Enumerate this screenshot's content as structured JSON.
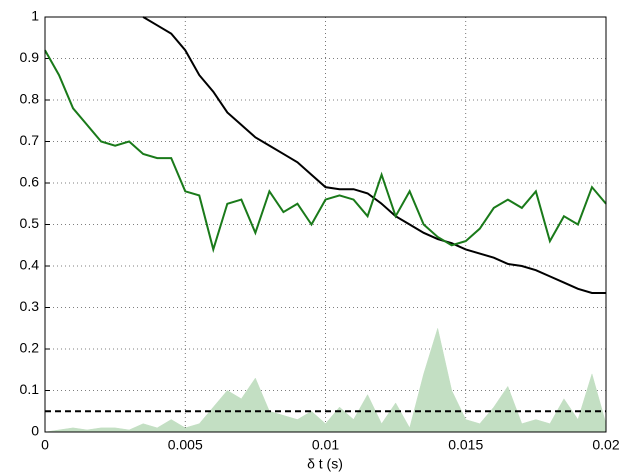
{
  "chart_data": {
    "type": "line",
    "x_label": "δ t (s)",
    "x": [
      0,
      0.0005,
      0.001,
      0.0015,
      0.002,
      0.0025,
      0.003,
      0.0035,
      0.004,
      0.0045,
      0.005,
      0.0055,
      0.006,
      0.0065,
      0.007,
      0.0075,
      0.008,
      0.0085,
      0.009,
      0.0095,
      0.01,
      0.0105,
      0.011,
      0.0115,
      0.012,
      0.0125,
      0.013,
      0.0135,
      0.014,
      0.0145,
      0.015,
      0.0155,
      0.016,
      0.0165,
      0.017,
      0.0175,
      0.018,
      0.0185,
      0.019,
      0.0195,
      0.02
    ],
    "series": [
      {
        "kind": "area",
        "color": "#c3dfc3",
        "values": [
          0,
          0.005,
          0.01,
          0.005,
          0.01,
          0.01,
          0.005,
          0.02,
          0.01,
          0.03,
          0.01,
          0.02,
          0.06,
          0.1,
          0.08,
          0.13,
          0.05,
          0.04,
          0.03,
          0.05,
          0.02,
          0.06,
          0.03,
          0.09,
          0.02,
          0.07,
          0.01,
          0.14,
          0.25,
          0.1,
          0.03,
          0.02,
          0.06,
          0.11,
          0.02,
          0.03,
          0.02,
          0.08,
          0.03,
          0.14,
          0.02
        ]
      },
      {
        "kind": "line",
        "color": "#000000",
        "values": [
          null,
          null,
          null,
          null,
          null,
          null,
          null,
          1.0,
          0.98,
          0.96,
          0.92,
          0.86,
          0.82,
          0.77,
          0.74,
          0.71,
          0.69,
          0.67,
          0.65,
          0.62,
          0.59,
          0.585,
          0.585,
          0.575,
          0.55,
          0.52,
          0.5,
          0.48,
          0.465,
          0.455,
          0.44,
          0.43,
          0.42,
          0.405,
          0.4,
          0.39,
          0.375,
          0.36,
          0.345,
          0.335,
          0.335
        ]
      },
      {
        "kind": "line",
        "color": "#1a7a1a",
        "values": [
          0.92,
          0.86,
          0.78,
          0.74,
          0.7,
          0.69,
          0.7,
          0.67,
          0.66,
          0.66,
          0.58,
          0.57,
          0.44,
          0.55,
          0.56,
          0.48,
          0.58,
          0.53,
          0.55,
          0.5,
          0.56,
          0.57,
          0.56,
          0.52,
          0.62,
          0.52,
          0.58,
          0.5,
          0.47,
          0.45,
          0.46,
          0.49,
          0.54,
          0.56,
          0.54,
          0.58,
          0.46,
          0.52,
          0.5,
          0.59,
          0.55
        ]
      }
    ],
    "threshold": 0.05,
    "xlim": [
      0,
      0.02
    ],
    "xticks": [
      0,
      0.005,
      0.01,
      0.015,
      0.02
    ],
    "ylim": [
      0,
      1
    ],
    "yticks": [
      0,
      0.1,
      0.2,
      0.3,
      0.4,
      0.5,
      0.6,
      0.7,
      0.8,
      0.9,
      1
    ],
    "grid": true
  }
}
